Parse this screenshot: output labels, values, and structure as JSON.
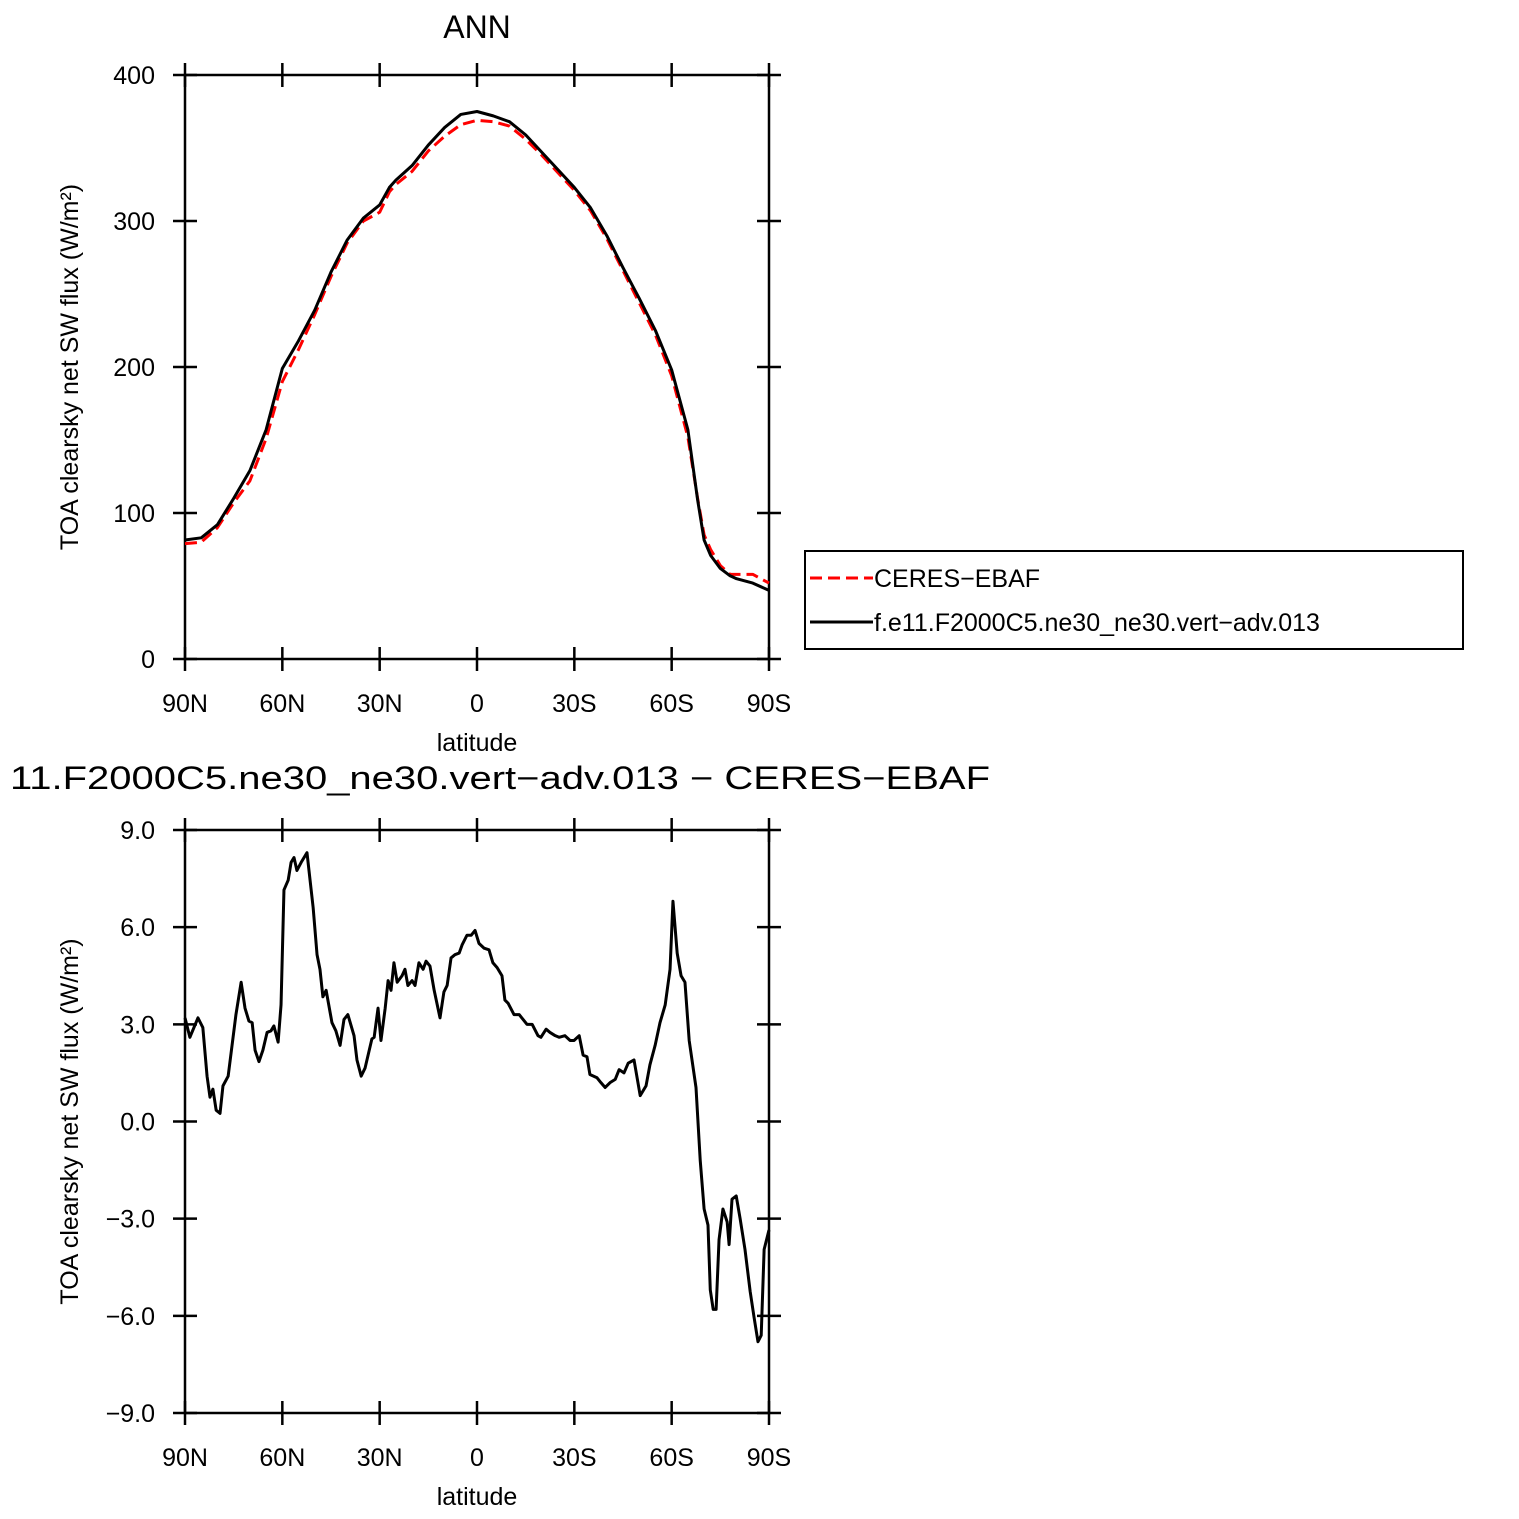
{
  "chart_data": [
    {
      "type": "line",
      "title": "ANN",
      "x_label": "latitude",
      "y_label": "TOA clearsky net SW flux (W/m²)",
      "x": [
        90,
        85,
        80,
        75,
        70,
        65,
        60,
        55,
        50,
        45,
        40,
        35,
        30,
        27,
        25,
        20,
        15,
        10,
        5,
        0,
        -5,
        -10,
        -15,
        -20,
        -25,
        -30,
        -35,
        -40,
        -45,
        -50,
        -55,
        -60,
        -65,
        -68,
        -70,
        -72,
        -75,
        -78,
        -80,
        -85,
        -90
      ],
      "series": [
        {
          "name": "CERES−EBAF",
          "color": "#ff0000",
          "line_style": "dashed",
          "values": [
            79,
            80,
            90,
            107,
            122,
            151,
            190,
            212,
            236,
            262,
            285,
            300,
            306,
            320,
            325,
            334,
            348,
            358,
            366,
            369,
            368,
            365,
            356,
            345,
            333,
            321,
            307,
            288,
            266,
            244,
            222,
            194,
            152,
            110,
            85,
            75,
            64,
            58,
            58,
            58,
            52
          ]
        },
        {
          "name": "f.e11.F2000C5.ne30_ne30.vert−adv.013",
          "color": "#000000",
          "line_style": "solid",
          "values": [
            81.5,
            83,
            92,
            110,
            129,
            157,
            199,
            218,
            239,
            265,
            287,
            302,
            311,
            323,
            328,
            338,
            352,
            364,
            373,
            375,
            372,
            368,
            359,
            347,
            335,
            323,
            309,
            290,
            268,
            247,
            225,
            198,
            157,
            109,
            81.5,
            71,
            62,
            57,
            55,
            52,
            47
          ]
        }
      ],
      "xlim": [
        90,
        -90
      ],
      "xticks": [
        {
          "value": 90,
          "label": "90N"
        },
        {
          "value": 60,
          "label": "60N"
        },
        {
          "value": 30,
          "label": "30N"
        },
        0,
        {
          "value": -30,
          "label": "30S"
        },
        {
          "value": -60,
          "label": "60S"
        },
        {
          "value": -90,
          "label": "90S"
        }
      ],
      "ylim": [
        0,
        400
      ],
      "yticks": [
        0,
        100,
        200,
        300,
        400
      ],
      "grid": false,
      "legend": "right"
    },
    {
      "type": "line",
      "title": "11.F2000C5.ne30_ne30.vert−adv.013 − CERES−EBAF",
      "x_label": "latitude",
      "y_label": "TOA clearsky net SW flux (W/m²)",
      "x": [
        90,
        88.5,
        86,
        84.5,
        83.2,
        82.3,
        81.4,
        80.4,
        79.2,
        78.3,
        76.7,
        74.3,
        72.7,
        71.5,
        70.3,
        69.3,
        68.4,
        67.2,
        66,
        64.7,
        63.5,
        62.6,
        61.3,
        60.4,
        59.5,
        58.2,
        57.3,
        56.4,
        55.5,
        54.2,
        52.4,
        50.5,
        49.3,
        48.4,
        47.5,
        46.5,
        44.7,
        43.5,
        42.2,
        41,
        39.8,
        37.9,
        37,
        35.7,
        34.5,
        32.4,
        31.7,
        30.5,
        29.6,
        28.3,
        27.4,
        26.5,
        25.6,
        24.6,
        23.1,
        22.2,
        21.3,
        20,
        19.1,
        17.9,
        16.6,
        15.7,
        14.5,
        13.2,
        11.4,
        10.2,
        9.2,
        8,
        6.8,
        5.5,
        4.6,
        3.1,
        1.8,
        0.6,
        -0.6,
        -2.2,
        -3.7,
        -4.9,
        -6.2,
        -7.7,
        -8.6,
        -9.6,
        -11.4,
        -13,
        -14.2,
        -15.4,
        -17,
        -18.8,
        -19.7,
        -21.3,
        -22.5,
        -24.1,
        -25.3,
        -27.1,
        -28.7,
        -29.9,
        -31.5,
        -32.7,
        -33.9,
        -34.8,
        -37,
        -38.2,
        -39.5,
        -41,
        -42.6,
        -43.8,
        -45.3,
        -46.6,
        -48.4,
        -50.3,
        -52.1,
        -53.3,
        -54.9,
        -56.4,
        -58,
        -59.5,
        -60.4,
        -61.7,
        -62.9,
        -64.1,
        -65.4,
        -67.5,
        -68.8,
        -70,
        -71.2,
        -71.9,
        -72.8,
        -73.7,
        -74.6,
        -75.8,
        -77.1,
        -77.7,
        -78.6,
        -79.9,
        -81.1,
        -82.6,
        -84.2,
        -85.4,
        -86.6,
        -87.6,
        -88.5,
        -90
      ],
      "series": [
        {
          "color": "#000000",
          "line_style": "solid",
          "values": [
            3.2,
            2.6,
            3.2,
            2.9,
            1.4,
            0.75,
            1.0,
            0.35,
            0.25,
            1.1,
            1.4,
            3.3,
            4.3,
            3.5,
            3.1,
            3.05,
            2.2,
            1.85,
            2.2,
            2.75,
            2.8,
            2.95,
            2.45,
            3.6,
            7.15,
            7.45,
            8.0,
            8.15,
            7.75,
            8.0,
            8.3,
            6.6,
            5.15,
            4.7,
            3.85,
            4.05,
            3.05,
            2.8,
            2.35,
            3.15,
            3.3,
            2.65,
            1.9,
            1.4,
            1.65,
            2.55,
            2.6,
            3.5,
            2.5,
            3.5,
            4.35,
            4.05,
            4.9,
            4.3,
            4.5,
            4.7,
            4.2,
            4.35,
            4.2,
            4.9,
            4.7,
            4.95,
            4.8,
            4.05,
            3.2,
            4.0,
            4.2,
            5.05,
            5.15,
            5.2,
            5.45,
            5.75,
            5.75,
            5.9,
            5.5,
            5.35,
            5.3,
            4.9,
            4.75,
            4.5,
            3.75,
            3.65,
            3.3,
            3.3,
            3.15,
            3.0,
            3.0,
            2.65,
            2.6,
            2.85,
            2.75,
            2.65,
            2.6,
            2.65,
            2.5,
            2.5,
            2.65,
            2.05,
            2.0,
            1.45,
            1.35,
            1.2,
            1.05,
            1.2,
            1.3,
            1.6,
            1.5,
            1.8,
            1.9,
            0.8,
            1.1,
            1.75,
            2.35,
            3.05,
            3.6,
            4.7,
            6.8,
            5.2,
            4.5,
            4.3,
            2.5,
            1.05,
            -1.2,
            -2.7,
            -3.2,
            -5.2,
            -5.8,
            -5.8,
            -3.65,
            -2.7,
            -3.1,
            -3.8,
            -2.4,
            -2.3,
            -3.0,
            -3.95,
            -5.25,
            -6.05,
            -6.8,
            -6.6,
            -3.95,
            -3.35
          ]
        }
      ],
      "xlim": [
        90,
        -90
      ],
      "xticks": [
        {
          "value": 90,
          "label": "90N"
        },
        {
          "value": 60,
          "label": "60N"
        },
        {
          "value": 30,
          "label": "30N"
        },
        0,
        {
          "value": -30,
          "label": "30S"
        },
        {
          "value": -60,
          "label": "60S"
        },
        {
          "value": -90,
          "label": "90S"
        }
      ],
      "ylim": [
        -9,
        9
      ],
      "yticks": [
        {
          "value": -9,
          "label": "−9.0"
        },
        {
          "value": -6,
          "label": "−6.0"
        },
        {
          "value": -3,
          "label": "−3.0"
        },
        {
          "value": 0,
          "label": "0.0"
        },
        {
          "value": 3,
          "label": "3.0"
        },
        {
          "value": 6,
          "label": "6.0"
        },
        {
          "value": 9,
          "label": "9.0"
        }
      ],
      "grid": false
    }
  ]
}
